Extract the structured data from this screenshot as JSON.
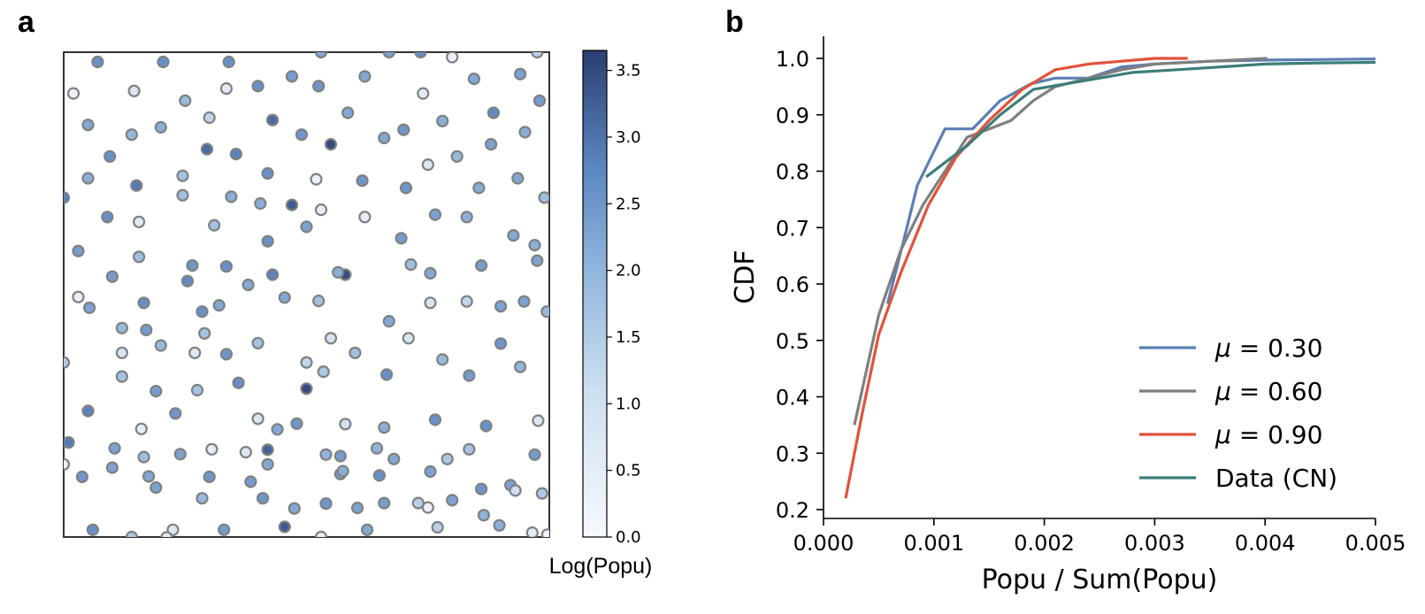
{
  "panel_a_label": "a",
  "panel_b_label": "b",
  "colors": {
    "mu_030": "#5b7fb5",
    "mu_060": "#7f7f7f",
    "mu_090": "#e0533a",
    "data_cn": "#3c7d7a",
    "marker_edge": "#808080",
    "cmap_low": "#f6f9ff",
    "cmap_mid": "#8fb5dc",
    "cmap_high": "#2b3f72"
  },
  "chart_data": [
    {
      "type": "scatter",
      "name": "spatial-population-map",
      "xlim": [
        0,
        1
      ],
      "ylim": [
        0,
        1
      ],
      "colorbar": {
        "label": "Log(Popu)",
        "range": [
          0,
          3.65
        ],
        "ticks": [
          "0.0",
          "0.5",
          "1.0",
          "1.5",
          "2.0",
          "2.5",
          "3.0",
          "3.5"
        ],
        "tick_values": [
          0,
          0.5,
          1.0,
          1.5,
          2.0,
          2.5,
          3.0,
          3.5
        ]
      },
      "points": [
        [
          0.07,
          0.98,
          2.6
        ],
        [
          0.205,
          0.98,
          2.6
        ],
        [
          0.34,
          0.98,
          2.6
        ],
        [
          0.53,
          1.0,
          2.2
        ],
        [
          0.67,
          1.0,
          2.3
        ],
        [
          0.735,
          1.0,
          2.6
        ],
        [
          0.8,
          0.99,
          0.4
        ],
        [
          0.975,
          1.0,
          1.4
        ],
        [
          0.02,
          0.915,
          0.2
        ],
        [
          0.145,
          0.92,
          0.8
        ],
        [
          0.25,
          0.9,
          1.9
        ],
        [
          0.335,
          0.925,
          0.6
        ],
        [
          0.4,
          0.93,
          2.6
        ],
        [
          0.47,
          0.95,
          2.4
        ],
        [
          0.525,
          0.93,
          2.5
        ],
        [
          0.62,
          0.95,
          2.2
        ],
        [
          0.74,
          0.915,
          0.6
        ],
        [
          0.845,
          0.945,
          2.2
        ],
        [
          0.94,
          0.955,
          2.3
        ],
        [
          0.05,
          0.85,
          2.2
        ],
        [
          0.14,
          0.83,
          1.9
        ],
        [
          0.2,
          0.845,
          2.1
        ],
        [
          0.3,
          0.865,
          1.3
        ],
        [
          0.43,
          0.86,
          3.1
        ],
        [
          0.585,
          0.875,
          2.2
        ],
        [
          0.7,
          0.84,
          2.5
        ],
        [
          0.78,
          0.858,
          2.1
        ],
        [
          0.885,
          0.875,
          2.7
        ],
        [
          0.98,
          0.9,
          2.4
        ],
        [
          0.95,
          0.835,
          2.1
        ],
        [
          0.095,
          0.785,
          2.6
        ],
        [
          0.295,
          0.8,
          3.1
        ],
        [
          0.355,
          0.79,
          2.8
        ],
        [
          0.49,
          0.83,
          2.5
        ],
        [
          0.55,
          0.81,
          3.5
        ],
        [
          0.66,
          0.823,
          2.2
        ],
        [
          0.75,
          0.768,
          0.7
        ],
        [
          0.81,
          0.785,
          1.9
        ],
        [
          0.88,
          0.81,
          2.3
        ],
        [
          0.05,
          0.74,
          2.1
        ],
        [
          0.15,
          0.725,
          2.9
        ],
        [
          0.245,
          0.745,
          1.7
        ],
        [
          0.42,
          0.75,
          2.6
        ],
        [
          0.52,
          0.738,
          0.3
        ],
        [
          0.615,
          0.735,
          2.5
        ],
        [
          0.705,
          0.72,
          2.5
        ],
        [
          0.855,
          0.72,
          2.1
        ],
        [
          0.935,
          0.74,
          2.2
        ],
        [
          0.99,
          0.7,
          1.8
        ],
        [
          0.0,
          0.7,
          2.8
        ],
        [
          0.245,
          0.705,
          1.8
        ],
        [
          0.345,
          0.702,
          2.1
        ],
        [
          0.405,
          0.688,
          2.1
        ],
        [
          0.47,
          0.685,
          3.3
        ],
        [
          0.53,
          0.675,
          0.4
        ],
        [
          0.765,
          0.665,
          2.3
        ],
        [
          0.83,
          0.66,
          2.1
        ],
        [
          0.09,
          0.66,
          2.6
        ],
        [
          0.155,
          0.65,
          0.7
        ],
        [
          0.31,
          0.643,
          1.7
        ],
        [
          0.42,
          0.61,
          2.6
        ],
        [
          0.5,
          0.64,
          2.3
        ],
        [
          0.62,
          0.66,
          0.5
        ],
        [
          0.695,
          0.616,
          2.4
        ],
        [
          0.926,
          0.622,
          2.2
        ],
        [
          0.97,
          0.602,
          2.1
        ],
        [
          0.03,
          0.59,
          2.4
        ],
        [
          0.155,
          0.578,
          1.8
        ],
        [
          0.265,
          0.56,
          2.5
        ],
        [
          0.335,
          0.558,
          2.6
        ],
        [
          0.43,
          0.541,
          2.8
        ],
        [
          0.58,
          0.541,
          3.5
        ],
        [
          0.755,
          0.544,
          2.2
        ],
        [
          0.86,
          0.56,
          2.4
        ],
        [
          0.975,
          0.57,
          2.3
        ],
        [
          0.1,
          0.537,
          2.4
        ],
        [
          0.255,
          0.528,
          2.7
        ],
        [
          0.38,
          0.52,
          2.2
        ],
        [
          0.455,
          0.494,
          2.2
        ],
        [
          0.565,
          0.546,
          2.1
        ],
        [
          0.715,
          0.562,
          1.8
        ],
        [
          0.9,
          0.476,
          2.3
        ],
        [
          0.03,
          0.495,
          0.4
        ],
        [
          0.165,
          0.483,
          2.6
        ],
        [
          0.32,
          0.478,
          2.2
        ],
        [
          0.285,
          0.465,
          2.6
        ],
        [
          0.755,
          0.483,
          0.9
        ],
        [
          0.83,
          0.486,
          1.3
        ],
        [
          0.948,
          0.486,
          2.3
        ],
        [
          0.053,
          0.473,
          2.3
        ],
        [
          0.17,
          0.427,
          2.4
        ],
        [
          0.29,
          0.42,
          1.7
        ],
        [
          0.525,
          0.487,
          1.7
        ],
        [
          0.67,
          0.445,
          2.2
        ],
        [
          0.71,
          0.41,
          0.8
        ],
        [
          0.995,
          0.465,
          1.9
        ],
        [
          0.12,
          0.431,
          1.9
        ],
        [
          0.2,
          0.395,
          1.9
        ],
        [
          0.27,
          0.38,
          0.7
        ],
        [
          0.4,
          0.4,
          1.7
        ],
        [
          0.5,
          0.36,
          1.3
        ],
        [
          0.335,
          0.377,
          2.5
        ],
        [
          0.6,
          0.38,
          1.8
        ],
        [
          0.665,
          0.335,
          2.6
        ],
        [
          0.78,
          0.366,
          1.9
        ],
        [
          0.835,
          0.333,
          2.4
        ],
        [
          0.9,
          0.399,
          2.5
        ],
        [
          0.94,
          0.351,
          2.0
        ],
        [
          0.0,
          0.36,
          1.5
        ],
        [
          0.12,
          0.331,
          1.7
        ],
        [
          0.19,
          0.301,
          2.4
        ],
        [
          0.275,
          0.303,
          1.7
        ],
        [
          0.36,
          0.318,
          2.6
        ],
        [
          0.5,
          0.306,
          3.5
        ],
        [
          0.535,
          0.341,
          1.6
        ],
        [
          0.58,
          0.233,
          1.0
        ],
        [
          0.66,
          0.226,
          2.1
        ],
        [
          0.765,
          0.242,
          2.6
        ],
        [
          0.87,
          0.229,
          2.6
        ],
        [
          0.977,
          0.24,
          0.8
        ],
        [
          0.05,
          0.26,
          2.8
        ],
        [
          0.16,
          0.223,
          0.5
        ],
        [
          0.23,
          0.255,
          2.5
        ],
        [
          0.4,
          0.244,
          0.8
        ],
        [
          0.48,
          0.234,
          2.5
        ],
        [
          0.57,
          0.167,
          2.4
        ],
        [
          0.42,
          0.18,
          3.2
        ],
        [
          0.68,
          0.161,
          2.2
        ],
        [
          0.79,
          0.161,
          1.6
        ],
        [
          0.835,
          0.181,
          1.7
        ],
        [
          0.01,
          0.195,
          2.9
        ],
        [
          0.105,
          0.183,
          2.3
        ],
        [
          0.165,
          0.165,
          1.8
        ],
        [
          0.24,
          0.171,
          2.3
        ],
        [
          0.305,
          0.181,
          0.5
        ],
        [
          0.375,
          0.175,
          0.7
        ],
        [
          0.44,
          0.222,
          2.2
        ],
        [
          0.57,
          0.13,
          2.4
        ],
        [
          0.65,
          0.127,
          2.6
        ],
        [
          0.755,
          0.135,
          2.3
        ],
        [
          0.97,
          0.17,
          2.4
        ],
        [
          0.0,
          0.15,
          0.4
        ],
        [
          0.1,
          0.143,
          2.3
        ],
        [
          0.175,
          0.125,
          2.2
        ],
        [
          0.3,
          0.124,
          2.5
        ],
        [
          0.42,
          0.15,
          2.2
        ],
        [
          0.385,
          0.114,
          2.4
        ],
        [
          0.54,
          0.17,
          2.0
        ],
        [
          0.575,
          0.136,
          2.1
        ],
        [
          0.645,
          0.183,
          2.0
        ],
        [
          0.92,
          0.107,
          2.3
        ],
        [
          0.86,
          0.099,
          2.5
        ],
        [
          0.038,
          0.124,
          2.5
        ],
        [
          0.19,
          0.102,
          2.3
        ],
        [
          0.285,
          0.08,
          1.9
        ],
        [
          0.475,
          0.059,
          2.2
        ],
        [
          0.54,
          0.069,
          2.5
        ],
        [
          0.605,
          0.06,
          2.3
        ],
        [
          0.66,
          0.07,
          2.4
        ],
        [
          0.75,
          0.061,
          0.3
        ],
        [
          0.8,
          0.076,
          2.3
        ],
        [
          0.897,
          0.024,
          2.1
        ],
        [
          0.93,
          0.096,
          1.1
        ],
        [
          0.985,
          0.09,
          1.6
        ],
        [
          0.06,
          0.015,
          2.6
        ],
        [
          0.14,
          0.0,
          1.6
        ],
        [
          0.225,
          0.015,
          0.7
        ],
        [
          0.33,
          0.015,
          2.4
        ],
        [
          0.41,
          0.08,
          2.5
        ],
        [
          0.455,
          0.021,
          3.3
        ],
        [
          0.53,
          0.0,
          0.4
        ],
        [
          0.625,
          0.015,
          2.2
        ],
        [
          0.77,
          0.02,
          1.4
        ],
        [
          0.865,
          0.045,
          2.0
        ],
        [
          0.965,
          0.009,
          0.5
        ],
        [
          0.996,
          0.005,
          0.3
        ],
        [
          0.212,
          -0.001,
          0.6
        ],
        [
          0.73,
          0.07,
          1.4
        ],
        [
          0.12,
          0.38,
          0.9
        ],
        [
          0.55,
          0.41,
          0.9
        ]
      ]
    },
    {
      "type": "line",
      "name": "cdf-plot",
      "xlabel": "Popu / Sum(Popu)",
      "ylabel": "CDF",
      "xlim": [
        0.0,
        0.005
      ],
      "ylim": [
        0.18,
        1.04
      ],
      "xticks": [
        0.0,
        0.001,
        0.002,
        0.003,
        0.004,
        0.005
      ],
      "xtick_labels": [
        "0.000",
        "0.001",
        "0.002",
        "0.003",
        "0.004",
        "0.005"
      ],
      "yticks": [
        0.2,
        0.3,
        0.4,
        0.5,
        0.6,
        0.7,
        0.8,
        0.9,
        1.0
      ],
      "ytick_labels": [
        "0.2",
        "0.3",
        "0.4",
        "0.5",
        "0.6",
        "0.7",
        "0.8",
        "0.9",
        "1.0"
      ],
      "legend_position": "lower-right",
      "series": [
        {
          "name": "μ = 0.30",
          "label_prefix": "μ",
          "label_value": "= 0.30",
          "color_key": "mu_030",
          "x": [
            0.00058,
            0.00073,
            0.00085,
            0.0011,
            0.00135,
            0.0016,
            0.00188,
            0.0021,
            0.0024,
            0.0027,
            0.003,
            0.0035,
            0.004,
            0.0045,
            0.005
          ],
          "y": [
            0.565,
            0.68,
            0.775,
            0.875,
            0.875,
            0.925,
            0.955,
            0.965,
            0.965,
            0.985,
            0.99,
            0.995,
            0.997,
            0.998,
            0.999
          ]
        },
        {
          "name": "μ = 0.60",
          "label_prefix": "μ",
          "label_value": "= 0.60",
          "color_key": "mu_060",
          "x": [
            0.00028,
            0.0005,
            0.0007,
            0.0009,
            0.0011,
            0.0013,
            0.0015,
            0.0017,
            0.0019,
            0.0021,
            0.0024,
            0.0027,
            0.003,
            0.0035,
            0.00402
          ],
          "y": [
            0.35,
            0.545,
            0.66,
            0.74,
            0.8,
            0.86,
            0.875,
            0.89,
            0.925,
            0.95,
            0.965,
            0.98,
            0.99,
            0.995,
            1.0
          ]
        },
        {
          "name": "μ = 0.90",
          "label_prefix": "μ",
          "label_value": "= 0.90",
          "color_key": "mu_090",
          "x": [
            0.0002,
            0.00035,
            0.0005,
            0.0007,
            0.00095,
            0.0012,
            0.0015,
            0.0018,
            0.0021,
            0.0024,
            0.0027,
            0.003,
            0.0033
          ],
          "y": [
            0.22,
            0.37,
            0.51,
            0.62,
            0.74,
            0.825,
            0.89,
            0.945,
            0.98,
            0.99,
            0.995,
            1.0,
            1.0
          ]
        },
        {
          "name": "Data (CN)",
          "label_prefix": "",
          "label_value": "Data (CN)",
          "color_key": "data_cn",
          "x": [
            0.00093,
            0.0013,
            0.0016,
            0.0019,
            0.0022,
            0.0025,
            0.0028,
            0.0032,
            0.0036,
            0.004,
            0.0045,
            0.005
          ],
          "y": [
            0.79,
            0.845,
            0.9,
            0.945,
            0.955,
            0.965,
            0.975,
            0.98,
            0.985,
            0.99,
            0.992,
            0.993
          ]
        }
      ]
    }
  ]
}
